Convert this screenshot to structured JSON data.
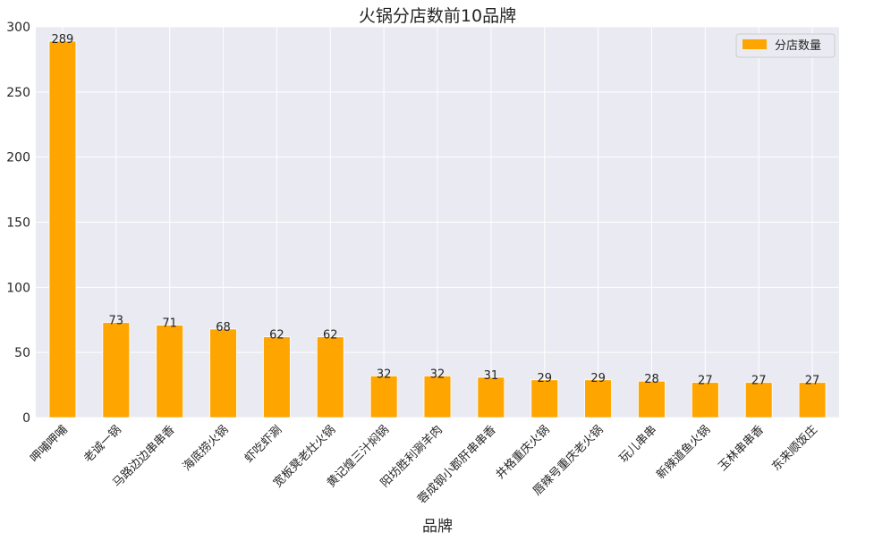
{
  "chart_data": {
    "type": "bar",
    "title": "火锅分店数前10品牌",
    "xlabel": "品牌",
    "ylabel": "",
    "ylim": [
      0,
      300
    ],
    "yticks": [
      0,
      50,
      100,
      150,
      200,
      250,
      300
    ],
    "grid": true,
    "legend_position": "top-right",
    "categories": [
      "呷哺呷哺",
      "老诚一锅",
      "马路边边串串香",
      "海底捞火锅",
      "虾吃虾涮",
      "宽板凳老灶火锅",
      "黄记煌三汁焖锅",
      "阳坊胜利涮羊肉",
      "蓉成钢小郡肝串串香",
      "井格重庆火锅",
      "唇辣号重庆老火锅",
      "玩儿串串",
      "新辣道鱼火锅",
      "玉林串串香",
      "东来顺饭庄"
    ],
    "series": [
      {
        "name": "分店数量",
        "color": "#ffa500",
        "values": [
          289,
          73,
          71,
          68,
          62,
          62,
          32,
          32,
          31,
          29,
          29,
          28,
          27,
          27,
          27
        ]
      }
    ]
  },
  "colors": {
    "plot_background": "#eaeaf2",
    "grid": "#ffffff",
    "bar": "#ffa500"
  }
}
